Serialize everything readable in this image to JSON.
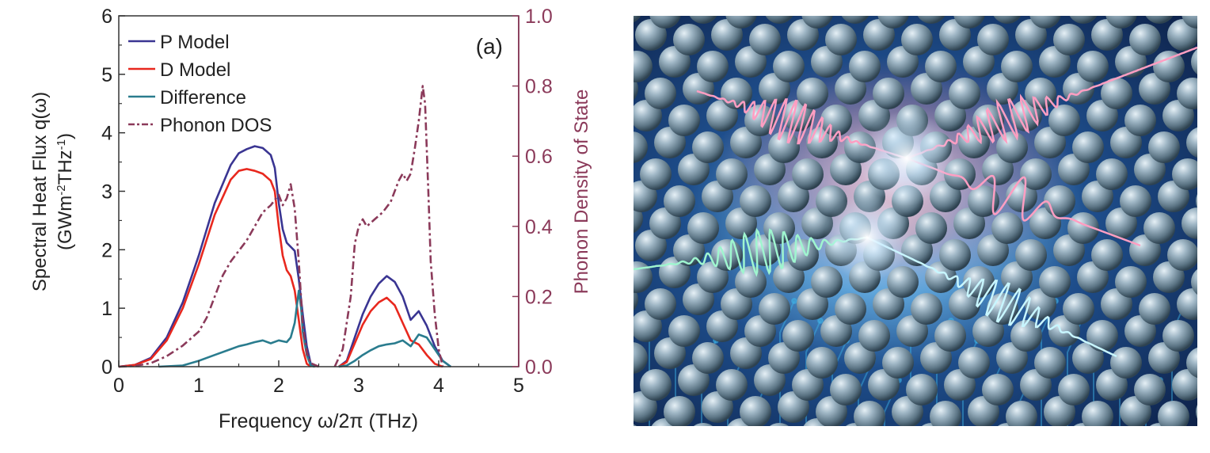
{
  "chart_data": {
    "type": "line",
    "panel_label": "(a)",
    "xlabel": "Frequency ω/2π (THz)",
    "ylabel_line1": "Spectral Heat Flux q(ω)",
    "ylabel_line2_prefix": "(GWm",
    "ylabel_sup1": "-2",
    "ylabel_mid": "THz",
    "ylabel_sup2": "-1",
    "ylabel_suffix": ")",
    "y2label": "Phonon Density of State",
    "xlim": [
      0,
      5
    ],
    "ylim": [
      0,
      6
    ],
    "y2lim": [
      0,
      1.0
    ],
    "xticks": [
      "0",
      "1",
      "2",
      "3",
      "4",
      "5"
    ],
    "yticks": [
      "0",
      "1",
      "2",
      "3",
      "4",
      "5",
      "6"
    ],
    "y2ticks": [
      "0.0",
      "0.2",
      "0.4",
      "0.6",
      "0.8",
      "1.0"
    ],
    "colors": {
      "p": "#3a3592",
      "d": "#e8281e",
      "diff": "#2a7c8e",
      "dos": "#8b3a5a"
    },
    "series": [
      {
        "name": "P Model",
        "axis": "left",
        "style": "solid",
        "color_key": "p",
        "points": [
          [
            0,
            0
          ],
          [
            0.2,
            0.03
          ],
          [
            0.4,
            0.15
          ],
          [
            0.6,
            0.5
          ],
          [
            0.8,
            1.1
          ],
          [
            1.0,
            1.9
          ],
          [
            1.2,
            2.8
          ],
          [
            1.4,
            3.45
          ],
          [
            1.5,
            3.65
          ],
          [
            1.6,
            3.72
          ],
          [
            1.7,
            3.77
          ],
          [
            1.8,
            3.74
          ],
          [
            1.9,
            3.62
          ],
          [
            1.95,
            3.4
          ],
          [
            2.0,
            2.8
          ],
          [
            2.05,
            2.35
          ],
          [
            2.1,
            2.12
          ],
          [
            2.15,
            2.05
          ],
          [
            2.2,
            1.98
          ],
          [
            2.25,
            1.5
          ],
          [
            2.3,
            0.9
          ],
          [
            2.35,
            0.35
          ],
          [
            2.4,
            0.05
          ],
          [
            2.45,
            0
          ]
        ]
      },
      {
        "name": "D Model",
        "axis": "left",
        "style": "solid",
        "color_key": "d",
        "points": [
          [
            0,
            0
          ],
          [
            0.2,
            0.03
          ],
          [
            0.4,
            0.13
          ],
          [
            0.6,
            0.45
          ],
          [
            0.8,
            1.0
          ],
          [
            1.0,
            1.75
          ],
          [
            1.2,
            2.6
          ],
          [
            1.4,
            3.2
          ],
          [
            1.5,
            3.35
          ],
          [
            1.6,
            3.38
          ],
          [
            1.7,
            3.35
          ],
          [
            1.8,
            3.3
          ],
          [
            1.9,
            3.18
          ],
          [
            1.95,
            3.0
          ],
          [
            2.0,
            2.4
          ],
          [
            2.05,
            1.9
          ],
          [
            2.1,
            1.65
          ],
          [
            2.15,
            1.55
          ],
          [
            2.2,
            1.3
          ],
          [
            2.25,
            0.8
          ],
          [
            2.3,
            0.3
          ],
          [
            2.35,
            0.05
          ],
          [
            2.4,
            0
          ]
        ]
      },
      {
        "name": "Difference",
        "axis": "left",
        "style": "solid",
        "color_key": "diff",
        "points": [
          [
            0.5,
            0
          ],
          [
            0.8,
            0.02
          ],
          [
            1.0,
            0.1
          ],
          [
            1.2,
            0.2
          ],
          [
            1.4,
            0.3
          ],
          [
            1.5,
            0.35
          ],
          [
            1.6,
            0.38
          ],
          [
            1.7,
            0.42
          ],
          [
            1.8,
            0.45
          ],
          [
            1.9,
            0.4
          ],
          [
            2.0,
            0.45
          ],
          [
            2.1,
            0.42
          ],
          [
            2.15,
            0.5
          ],
          [
            2.2,
            0.75
          ],
          [
            2.25,
            1.3
          ],
          [
            2.28,
            1.0
          ],
          [
            2.3,
            0.6
          ],
          [
            2.35,
            0.2
          ],
          [
            2.4,
            0.02
          ],
          [
            2.45,
            0
          ]
        ]
      },
      {
        "name": "Phonon DOS",
        "axis": "right",
        "style": "dashdot",
        "color_key": "dos",
        "points": [
          [
            0,
            0
          ],
          [
            0.2,
            0.002
          ],
          [
            0.4,
            0.01
          ],
          [
            0.6,
            0.03
          ],
          [
            0.8,
            0.06
          ],
          [
            1.0,
            0.1
          ],
          [
            1.1,
            0.14
          ],
          [
            1.2,
            0.2
          ],
          [
            1.3,
            0.26
          ],
          [
            1.4,
            0.3
          ],
          [
            1.5,
            0.33
          ],
          [
            1.6,
            0.36
          ],
          [
            1.7,
            0.4
          ],
          [
            1.8,
            0.44
          ],
          [
            1.9,
            0.46
          ],
          [
            2.0,
            0.49
          ],
          [
            2.05,
            0.46
          ],
          [
            2.1,
            0.48
          ],
          [
            2.15,
            0.52
          ],
          [
            2.2,
            0.45
          ],
          [
            2.25,
            0.3
          ],
          [
            2.3,
            0.12
          ],
          [
            2.35,
            0.04
          ],
          [
            2.4,
            0.01
          ],
          [
            2.5,
            0
          ]
        ]
      },
      {
        "name": "P Model",
        "axis": "left",
        "style": "solid",
        "color_key": "p",
        "legend": false,
        "points": [
          [
            2.75,
            0
          ],
          [
            2.85,
            0.1
          ],
          [
            2.95,
            0.5
          ],
          [
            3.05,
            0.9
          ],
          [
            3.15,
            1.2
          ],
          [
            3.25,
            1.42
          ],
          [
            3.35,
            1.55
          ],
          [
            3.45,
            1.45
          ],
          [
            3.55,
            1.2
          ],
          [
            3.65,
            0.8
          ],
          [
            3.75,
            0.95
          ],
          [
            3.85,
            0.7
          ],
          [
            3.95,
            0.35
          ],
          [
            4.05,
            0.1
          ],
          [
            4.15,
            0
          ]
        ]
      },
      {
        "name": "D Model",
        "axis": "left",
        "style": "solid",
        "color_key": "d",
        "legend": false,
        "points": [
          [
            2.75,
            0
          ],
          [
            2.85,
            0.08
          ],
          [
            2.95,
            0.4
          ],
          [
            3.05,
            0.72
          ],
          [
            3.15,
            0.95
          ],
          [
            3.25,
            1.1
          ],
          [
            3.35,
            1.18
          ],
          [
            3.45,
            1.05
          ],
          [
            3.55,
            0.75
          ],
          [
            3.65,
            0.45
          ],
          [
            3.75,
            0.38
          ],
          [
            3.85,
            0.2
          ],
          [
            3.95,
            0.05
          ],
          [
            4.05,
            0
          ]
        ]
      },
      {
        "name": "Difference",
        "axis": "left",
        "style": "solid",
        "color_key": "diff",
        "legend": false,
        "points": [
          [
            2.75,
            0
          ],
          [
            2.85,
            0.02
          ],
          [
            2.95,
            0.1
          ],
          [
            3.05,
            0.2
          ],
          [
            3.15,
            0.28
          ],
          [
            3.25,
            0.35
          ],
          [
            3.35,
            0.38
          ],
          [
            3.45,
            0.4
          ],
          [
            3.55,
            0.45
          ],
          [
            3.65,
            0.35
          ],
          [
            3.75,
            0.55
          ],
          [
            3.85,
            0.5
          ],
          [
            3.95,
            0.3
          ],
          [
            4.05,
            0.1
          ],
          [
            4.15,
            0
          ]
        ]
      },
      {
        "name": "Phonon DOS",
        "axis": "right",
        "style": "dashdot",
        "color_key": "dos",
        "legend": false,
        "points": [
          [
            2.7,
            0
          ],
          [
            2.8,
            0.05
          ],
          [
            2.9,
            0.2
          ],
          [
            2.95,
            0.35
          ],
          [
            3.0,
            0.4
          ],
          [
            3.05,
            0.42
          ],
          [
            3.1,
            0.4
          ],
          [
            3.2,
            0.42
          ],
          [
            3.3,
            0.44
          ],
          [
            3.4,
            0.47
          ],
          [
            3.5,
            0.53
          ],
          [
            3.55,
            0.55
          ],
          [
            3.6,
            0.53
          ],
          [
            3.65,
            0.55
          ],
          [
            3.7,
            0.62
          ],
          [
            3.75,
            0.7
          ],
          [
            3.8,
            0.8
          ],
          [
            3.83,
            0.75
          ],
          [
            3.87,
            0.5
          ],
          [
            3.9,
            0.3
          ],
          [
            3.95,
            0.15
          ],
          [
            4.0,
            0.05
          ],
          [
            4.05,
            0
          ]
        ]
      }
    ]
  }
}
